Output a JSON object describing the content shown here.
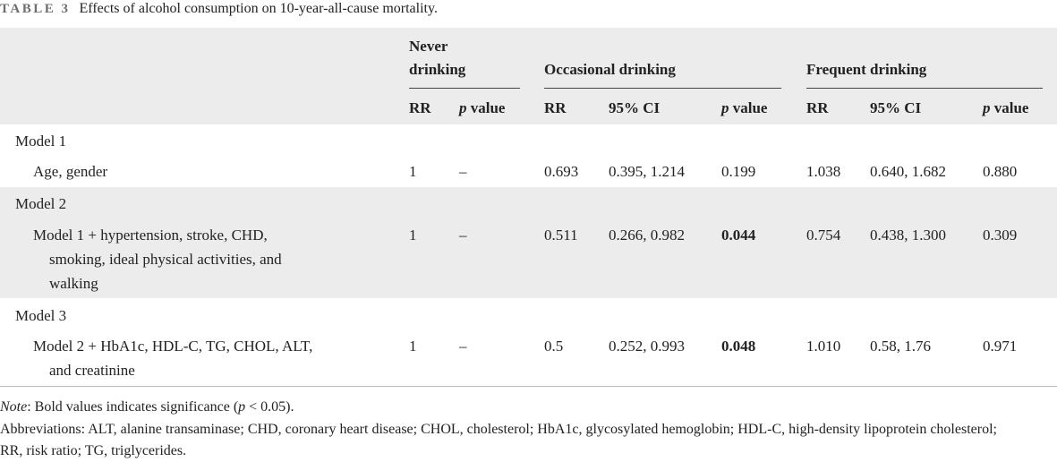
{
  "caption": {
    "label": "TABLE 3",
    "text": "Effects of alcohol consumption on 10-year-all-cause mortality."
  },
  "header": {
    "groups": {
      "never": "Never drinking",
      "occasional": "Occasional drinking",
      "frequent": "Frequent drinking"
    },
    "never_line1": "Never",
    "never_line2": "drinking",
    "rr": "RR",
    "ci": "95% CI",
    "p_italic": "p",
    "p_rest": " value"
  },
  "rows": [
    {
      "model": "Model 1",
      "adjust": "Age, gender",
      "never_rr": "1",
      "never_p": "–",
      "occ_rr": "0.693",
      "occ_ci": "0.395, 1.214",
      "occ_p": "0.199",
      "freq_rr": "1.038",
      "freq_ci": "0.640, 1.682",
      "freq_p": "0.880"
    },
    {
      "model": "Model 2",
      "adjust_lines": [
        "Model 1 + hypertension, stroke, CHD,",
        "smoking, ideal physical activities, and",
        "walking"
      ],
      "never_rr": "1",
      "never_p": "–",
      "occ_rr": "0.511",
      "occ_ci": "0.266, 0.982",
      "occ_p": "0.044",
      "freq_rr": "0.754",
      "freq_ci": "0.438, 1.300",
      "freq_p": "0.309"
    },
    {
      "model": "Model 3",
      "adjust_lines": [
        "Model 2 + HbA1c, HDL-C, TG, CHOL, ALT,",
        "and creatinine"
      ],
      "never_rr": "1",
      "never_p": "–",
      "occ_rr": "0.5",
      "occ_ci": "0.252, 0.993",
      "occ_p": "0.048",
      "freq_rr": "1.010",
      "freq_ci": "0.58, 1.76",
      "freq_p": "0.971"
    }
  ],
  "note": {
    "label": "Note",
    "text_before": ": Bold values indicates significance (",
    "p": "p",
    "text_after": " < 0.05)."
  },
  "abbreviations": "Abbreviations: ALT, alanine transaminase; CHD, coronary heart disease; CHOL, cholesterol; HbA1c, glycosylated hemoglobin; HDL-C, high-density lipoprotein cholesterol; RR, risk ratio; TG, triglycerides."
}
